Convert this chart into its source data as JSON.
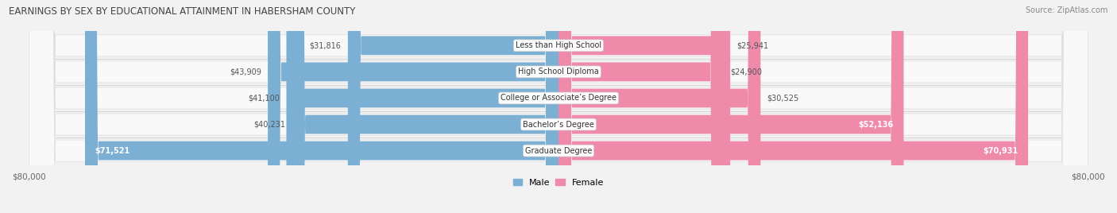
{
  "title": "EARNINGS BY SEX BY EDUCATIONAL ATTAINMENT IN HABERSHAM COUNTY",
  "source": "Source: ZipAtlas.com",
  "categories": [
    "Less than High School",
    "High School Diploma",
    "College or Associate’s Degree",
    "Bachelor’s Degree",
    "Graduate Degree"
  ],
  "male_values": [
    31816,
    43909,
    41100,
    40231,
    71521
  ],
  "female_values": [
    25941,
    24900,
    30525,
    52136,
    70931
  ],
  "male_color": "#7bafd4",
  "female_color": "#f08aaa",
  "male_label": "Male",
  "female_label": "Female",
  "x_max": 80000,
  "x_tick_label_left": "$80,000",
  "x_tick_label_right": "$80,000",
  "background_color": "#f2f2f2",
  "bar_bg_color": "#ebebeb",
  "row_bg_color": "#f9f9f9",
  "title_fontsize": 8.5,
  "source_fontsize": 7,
  "label_fontsize": 7.5,
  "value_fontsize": 7,
  "category_fontsize": 7,
  "legend_fontsize": 8
}
